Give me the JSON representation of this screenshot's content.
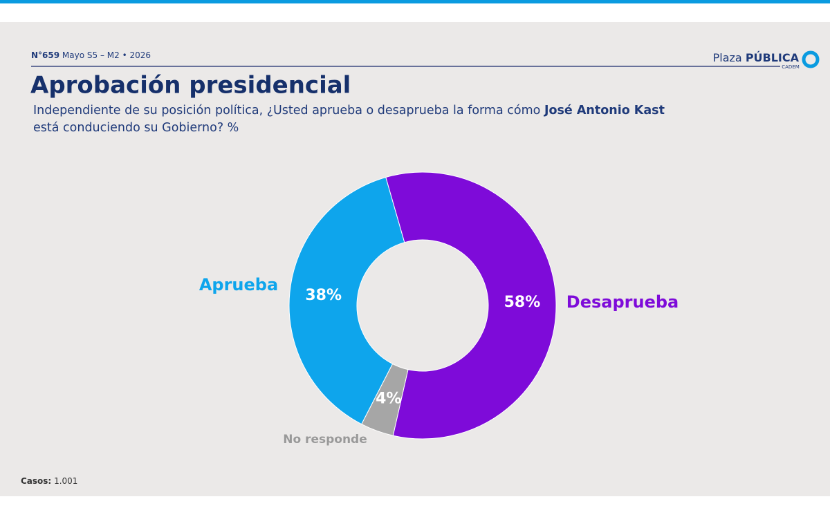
{
  "chart_data": {
    "type": "donut",
    "issue": "N°659",
    "edition": "Mayo S5 – M2 • 2026",
    "brand": [
      "Plaza",
      "PÚBLICA",
      "CADEM"
    ],
    "title": "Aprobación presidencial",
    "subtitle": [
      "Independiente de su posición política, ¿Usted aprueba o desaprueba la forma cómo",
      "José Antonio Kast",
      "está conduciendo su Gobierno? %"
    ],
    "categories": [
      "Aprueba",
      "Desaprueba",
      "No responde"
    ],
    "values": [
      38,
      58,
      4
    ],
    "value_labels": [
      "38%",
      "58%",
      "4%"
    ],
    "colors": [
      "#0ea5ec",
      "#7e0bd9",
      "#a6a6a6"
    ],
    "cases_label": "Casos:",
    "cases": "1.001"
  }
}
